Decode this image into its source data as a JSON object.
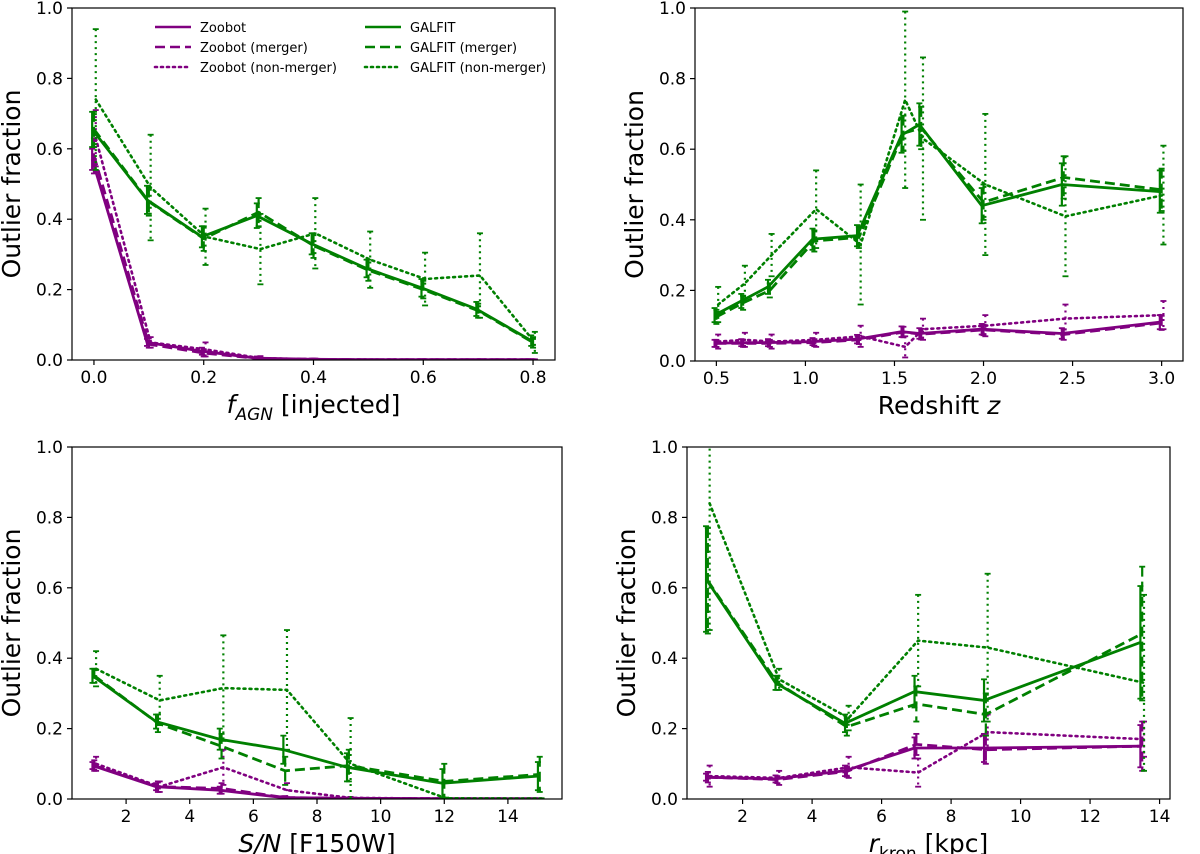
{
  "colors": {
    "zoobot": "#800080",
    "galfit": "#008000"
  },
  "legend": [
    {
      "label": "Zoobot",
      "color": "#800080",
      "style": "solid"
    },
    {
      "label": "Zoobot (merger)",
      "color": "#800080",
      "style": "dashed"
    },
    {
      "label": "Zoobot (non-merger)",
      "color": "#800080",
      "style": "dotted"
    },
    {
      "label": "GALFIT",
      "color": "#008000",
      "style": "solid"
    },
    {
      "label": "GALFIT (merger)",
      "color": "#008000",
      "style": "dashed"
    },
    {
      "label": "GALFIT (non-merger)",
      "color": "#008000",
      "style": "dotted"
    }
  ],
  "chart_data": [
    {
      "type": "line",
      "xlabel_main": "f",
      "xlabel_sub": "AGN",
      "xlabel_rest": " [injected]",
      "ylabel": "Outlier fraction",
      "xlim": [
        -0.04,
        0.84
      ],
      "ylim": [
        0.0,
        1.0
      ],
      "xticks": [
        "0.0",
        "0.2",
        "0.4",
        "0.6",
        "0.8"
      ],
      "xtick_values": [
        0.0,
        0.2,
        0.4,
        0.6,
        0.8
      ],
      "yticks": [
        "0.0",
        "0.2",
        "0.4",
        "0.6",
        "0.8",
        "1.0"
      ],
      "ytick_values": [
        0.0,
        0.2,
        0.4,
        0.6,
        0.8,
        1.0
      ],
      "x": [
        0.0,
        0.1,
        0.2,
        0.3,
        0.4,
        0.5,
        0.6,
        0.7,
        0.8
      ],
      "series": [
        {
          "name": "Zoobot",
          "color": "#800080",
          "style": "solid",
          "values": [
            0.57,
            0.05,
            0.025,
            0.005,
            0.002,
            0.001,
            0.001,
            0.001,
            0.001
          ],
          "err": [
            0.03,
            0.01,
            0.01,
            0.005,
            0.002,
            0.001,
            0.001,
            0.001,
            0.001
          ]
        },
        {
          "name": "Zoobot (merger)",
          "color": "#800080",
          "style": "dashed",
          "values": [
            0.58,
            0.045,
            0.02,
            0.004,
            0.002,
            0.001,
            0.001,
            0.001,
            0.001
          ],
          "err": [
            0.05,
            0.01,
            0.01,
            0.005,
            0.002,
            0.001,
            0.001,
            0.001,
            0.001
          ]
        },
        {
          "name": "Zoobot (non-merger)",
          "color": "#800080",
          "style": "dotted",
          "values": [
            0.63,
            0.05,
            0.03,
            0.005,
            0.002,
            0.001,
            0.001,
            0.001,
            0.001
          ],
          "err": [
            0.08,
            0.015,
            0.02,
            0.006,
            0.002,
            0.001,
            0.001,
            0.001,
            0.001
          ]
        },
        {
          "name": "GALFIT",
          "color": "#008000",
          "style": "solid",
          "values": [
            0.655,
            0.455,
            0.35,
            0.41,
            0.33,
            0.26,
            0.205,
            0.145,
            0.055
          ],
          "err": [
            0.05,
            0.04,
            0.03,
            0.035,
            0.03,
            0.025,
            0.025,
            0.02,
            0.015
          ]
        },
        {
          "name": "GALFIT (merger)",
          "color": "#008000",
          "style": "dashed",
          "values": [
            0.655,
            0.45,
            0.345,
            0.42,
            0.325,
            0.255,
            0.2,
            0.14,
            0.05
          ],
          "err": [
            0.05,
            0.04,
            0.035,
            0.04,
            0.035,
            0.03,
            0.025,
            0.02,
            0.015
          ]
        },
        {
          "name": "GALFIT (non-merger)",
          "color": "#008000",
          "style": "dotted",
          "values": [
            0.74,
            0.49,
            0.35,
            0.315,
            0.36,
            0.285,
            0.23,
            0.24,
            0.05
          ],
          "err": [
            0.2,
            0.15,
            0.08,
            0.1,
            0.1,
            0.08,
            0.075,
            0.12,
            0.03
          ]
        }
      ]
    },
    {
      "type": "line",
      "xlabel_main": "Redshift ",
      "xlabel_sub": "",
      "xlabel_rest": "",
      "xlabel_italic": "z",
      "ylabel": "Outlier fraction",
      "xlim": [
        0.38,
        3.12
      ],
      "ylim": [
        0.0,
        1.0
      ],
      "xticks": [
        "0.5",
        "1.0",
        "1.5",
        "2.0",
        "2.5",
        "3.0"
      ],
      "xtick_values": [
        0.5,
        1.0,
        1.5,
        2.0,
        2.5,
        3.0
      ],
      "yticks": [
        "0.0",
        "0.2",
        "0.4",
        "0.6",
        "0.8",
        "1.0"
      ],
      "ytick_values": [
        0.0,
        0.2,
        0.4,
        0.6,
        0.8,
        1.0
      ],
      "x": [
        0.5,
        0.65,
        0.8,
        1.05,
        1.3,
        1.55,
        1.65,
        2.0,
        2.45,
        3.0
      ],
      "series": [
        {
          "name": "Zoobot",
          "color": "#800080",
          "style": "solid",
          "values": [
            0.05,
            0.052,
            0.052,
            0.055,
            0.062,
            0.083,
            0.078,
            0.09,
            0.078,
            0.11
          ],
          "err": [
            0.01,
            0.01,
            0.01,
            0.01,
            0.012,
            0.015,
            0.015,
            0.015,
            0.015,
            0.02
          ]
        },
        {
          "name": "Zoobot (merger)",
          "color": "#800080",
          "style": "dashed",
          "values": [
            0.05,
            0.05,
            0.05,
            0.052,
            0.06,
            0.082,
            0.076,
            0.088,
            0.075,
            0.108
          ],
          "err": [
            0.01,
            0.01,
            0.01,
            0.01,
            0.012,
            0.015,
            0.015,
            0.015,
            0.015,
            0.02
          ]
        },
        {
          "name": "Zoobot (non-merger)",
          "color": "#800080",
          "style": "dotted",
          "values": [
            0.055,
            0.06,
            0.055,
            0.06,
            0.07,
            0.04,
            0.09,
            0.1,
            0.12,
            0.13
          ],
          "err": [
            0.02,
            0.02,
            0.02,
            0.02,
            0.03,
            0.03,
            0.03,
            0.03,
            0.04,
            0.04
          ]
        },
        {
          "name": "GALFIT",
          "color": "#008000",
          "style": "solid",
          "values": [
            0.13,
            0.17,
            0.21,
            0.345,
            0.355,
            0.64,
            0.67,
            0.44,
            0.5,
            0.48
          ],
          "err": [
            0.02,
            0.02,
            0.02,
            0.03,
            0.03,
            0.05,
            0.06,
            0.05,
            0.06,
            0.06
          ]
        },
        {
          "name": "GALFIT (merger)",
          "color": "#008000",
          "style": "dashed",
          "values": [
            0.125,
            0.165,
            0.2,
            0.34,
            0.35,
            0.645,
            0.66,
            0.45,
            0.52,
            0.485
          ],
          "err": [
            0.02,
            0.02,
            0.02,
            0.03,
            0.03,
            0.05,
            0.06,
            0.05,
            0.06,
            0.06
          ]
        },
        {
          "name": "GALFIT (non-merger)",
          "color": "#008000",
          "style": "dotted",
          "values": [
            0.16,
            0.22,
            0.3,
            0.43,
            0.33,
            0.74,
            0.63,
            0.5,
            0.41,
            0.47
          ],
          "err": [
            0.05,
            0.05,
            0.06,
            0.11,
            0.17,
            0.25,
            0.23,
            0.2,
            0.17,
            0.14
          ]
        }
      ]
    },
    {
      "type": "line",
      "xlabel_main": "S/N",
      "xlabel_sub": "",
      "xlabel_rest": " [F150W]",
      "ylabel": "Outlier fraction",
      "xlim": [
        0.3,
        15.7
      ],
      "ylim": [
        0.0,
        1.0
      ],
      "xticks": [
        "2",
        "4",
        "6",
        "8",
        "10",
        "12",
        "14"
      ],
      "xtick_values": [
        2,
        4,
        6,
        8,
        10,
        12,
        14
      ],
      "yticks": [
        "0.0",
        "0.2",
        "0.4",
        "0.6",
        "0.8",
        "1.0"
      ],
      "ytick_values": [
        0.0,
        0.2,
        0.4,
        0.6,
        0.8,
        1.0
      ],
      "x": [
        1.0,
        3.0,
        5.0,
        7.0,
        9.0,
        12.0,
        15.0
      ],
      "series": [
        {
          "name": "Zoobot",
          "color": "#800080",
          "style": "solid",
          "values": [
            0.095,
            0.035,
            0.025,
            0.004,
            0.002,
            0.001,
            0.001
          ],
          "err": [
            0.01,
            0.01,
            0.01,
            0.004,
            0.002,
            0.001,
            0.001
          ]
        },
        {
          "name": "Zoobot (merger)",
          "color": "#800080",
          "style": "dashed",
          "values": [
            0.095,
            0.035,
            0.03,
            0.004,
            0.002,
            0.001,
            0.001
          ],
          "err": [
            0.015,
            0.015,
            0.015,
            0.004,
            0.002,
            0.001,
            0.001
          ]
        },
        {
          "name": "Zoobot (non-merger)",
          "color": "#800080",
          "style": "dotted",
          "values": [
            0.1,
            0.035,
            0.09,
            0.025,
            0.003,
            0.001,
            0.001
          ],
          "err": [
            0.02,
            0.015,
            0.05,
            0.02,
            0.003,
            0.001,
            0.001
          ]
        },
        {
          "name": "GALFIT",
          "color": "#008000",
          "style": "solid",
          "values": [
            0.35,
            0.22,
            0.17,
            0.14,
            0.09,
            0.045,
            0.065
          ],
          "err": [
            0.02,
            0.02,
            0.03,
            0.04,
            0.04,
            0.04,
            0.04
          ]
        },
        {
          "name": "GALFIT (merger)",
          "color": "#008000",
          "style": "dashed",
          "values": [
            0.35,
            0.215,
            0.15,
            0.08,
            0.095,
            0.05,
            0.07
          ],
          "err": [
            0.02,
            0.025,
            0.035,
            0.04,
            0.045,
            0.05,
            0.05
          ]
        },
        {
          "name": "GALFIT (non-merger)",
          "color": "#008000",
          "style": "dotted",
          "values": [
            0.37,
            0.28,
            0.315,
            0.31,
            0.1,
            0.002,
            0.001
          ],
          "err": [
            0.05,
            0.07,
            0.15,
            0.17,
            0.13,
            0.002,
            0.001
          ]
        }
      ]
    },
    {
      "type": "line",
      "xlabel_main": "r",
      "xlabel_sub": "kron",
      "xlabel_rest": " [kpc]",
      "ylabel": "Outlier fraction",
      "xlim": [
        0.4,
        14.3
      ],
      "ylim": [
        0.0,
        1.0
      ],
      "xticks": [
        "2",
        "4",
        "6",
        "8",
        "10",
        "12",
        "14"
      ],
      "xtick_values": [
        2,
        4,
        6,
        8,
        10,
        12,
        14
      ],
      "yticks": [
        "0.0",
        "0.2",
        "0.4",
        "0.6",
        "0.8",
        "1.0"
      ],
      "ytick_values": [
        0.0,
        0.2,
        0.4,
        0.6,
        0.8,
        1.0
      ],
      "x": [
        1.0,
        3.0,
        5.0,
        7.0,
        9.0,
        13.5
      ],
      "series": [
        {
          "name": "Zoobot",
          "color": "#800080",
          "style": "solid",
          "values": [
            0.062,
            0.057,
            0.08,
            0.145,
            0.145,
            0.15
          ],
          "err": [
            0.01,
            0.01,
            0.015,
            0.03,
            0.04,
            0.06
          ]
        },
        {
          "name": "Zoobot (merger)",
          "color": "#800080",
          "style": "dashed",
          "values": [
            0.062,
            0.055,
            0.078,
            0.155,
            0.14,
            0.15
          ],
          "err": [
            0.015,
            0.01,
            0.015,
            0.03,
            0.04,
            0.07
          ]
        },
        {
          "name": "Zoobot (non-merger)",
          "color": "#800080",
          "style": "dotted",
          "values": [
            0.065,
            0.06,
            0.09,
            0.075,
            0.19,
            0.17
          ],
          "err": [
            0.03,
            0.02,
            0.03,
            0.04,
            0.05,
            0.05
          ]
        },
        {
          "name": "GALFIT",
          "color": "#008000",
          "style": "solid",
          "values": [
            0.625,
            0.33,
            0.215,
            0.305,
            0.28,
            0.445
          ],
          "err": [
            0.15,
            0.02,
            0.025,
            0.045,
            0.06,
            0.16
          ]
        },
        {
          "name": "GALFIT (merger)",
          "color": "#008000",
          "style": "dashed",
          "values": [
            0.62,
            0.33,
            0.205,
            0.27,
            0.24,
            0.47
          ],
          "err": [
            0.15,
            0.02,
            0.025,
            0.05,
            0.06,
            0.19
          ]
        },
        {
          "name": "GALFIT (non-merger)",
          "color": "#008000",
          "style": "dotted",
          "values": [
            0.84,
            0.34,
            0.23,
            0.45,
            0.43,
            0.33
          ],
          "err": [
            0.36,
            0.03,
            0.035,
            0.13,
            0.21,
            0.25
          ]
        }
      ]
    }
  ]
}
